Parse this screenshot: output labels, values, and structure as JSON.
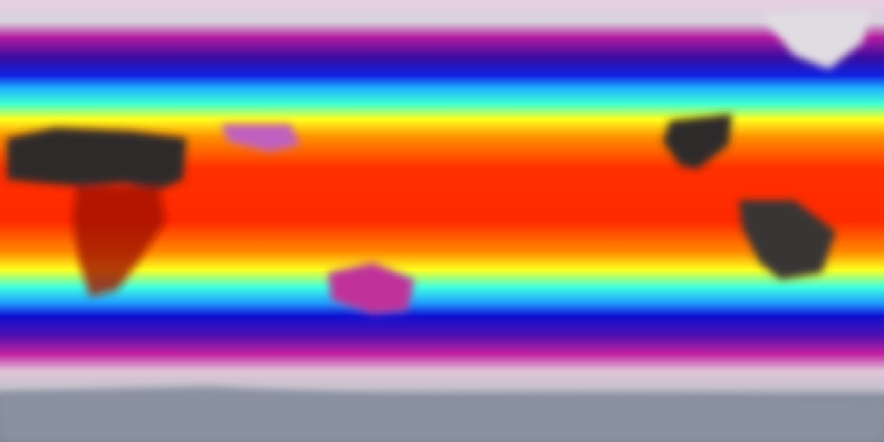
{
  "map": {
    "projection": "equirectangular",
    "colors": {
      "polar_top": "#e2d2e0",
      "cold_magenta": "#b01a9e",
      "cold_blue": "#1020e0",
      "mild_cyan": "#40ffe0",
      "warm_yellow": "#ffff20",
      "warm_orange": "#ff8c00",
      "hot_red": "#ff2a00",
      "hottest_land": "#303030",
      "antarctic_ice": "#7a8290"
    }
  }
}
